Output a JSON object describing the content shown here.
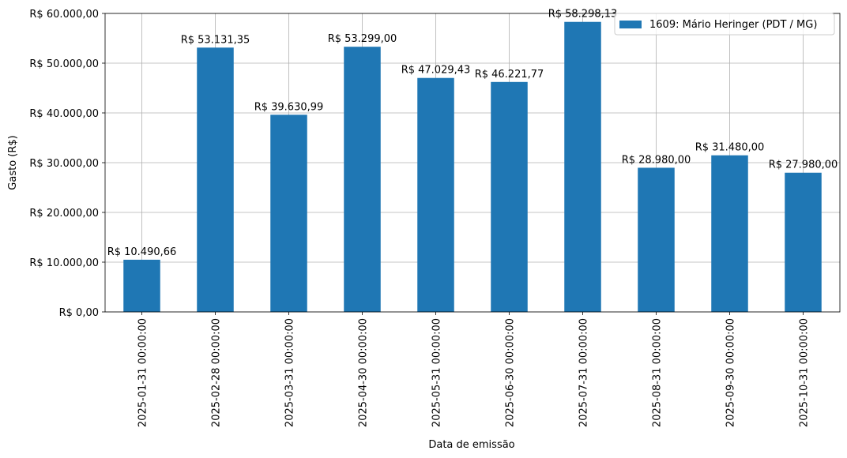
{
  "chart_data": {
    "type": "bar",
    "categories": [
      "2025-01-31 00:00:00",
      "2025-02-28 00:00:00",
      "2025-03-31 00:00:00",
      "2025-04-30 00:00:00",
      "2025-05-31 00:00:00",
      "2025-06-30 00:00:00",
      "2025-07-31 00:00:00",
      "2025-08-31 00:00:00",
      "2025-09-30 00:00:00",
      "2025-10-31 00:00:00"
    ],
    "series": [
      {
        "name": "1609: Mário Heringer (PDT / MG)",
        "color": "#1f77b4",
        "values": [
          10490.66,
          53131.35,
          39630.99,
          53299.0,
          47029.43,
          46221.77,
          58298.13,
          28980.0,
          31480.0,
          27980.0
        ],
        "labels": [
          "R$ 10.490,66",
          "R$ 53.131,35",
          "R$ 39.630,99",
          "R$ 53.299,00",
          "R$ 47.029,43",
          "R$ 46.221,77",
          "R$ 58.298,13",
          "R$ 28.980,00",
          "R$ 31.480,00",
          "R$ 27.980,00"
        ]
      }
    ],
    "xlabel": "Data de emissão",
    "ylabel": "Gasto (R$)",
    "ylim": [
      0,
      60000
    ],
    "yticks": [
      0,
      10000,
      20000,
      30000,
      40000,
      50000,
      60000
    ],
    "ytick_labels": [
      "R$ 0,00",
      "R$ 10.000,00",
      "R$ 20.000,00",
      "R$ 30.000,00",
      "R$ 40.000,00",
      "R$ 50.000,00",
      "R$ 60.000,00"
    ],
    "grid": true,
    "legend_position": "top-right"
  }
}
